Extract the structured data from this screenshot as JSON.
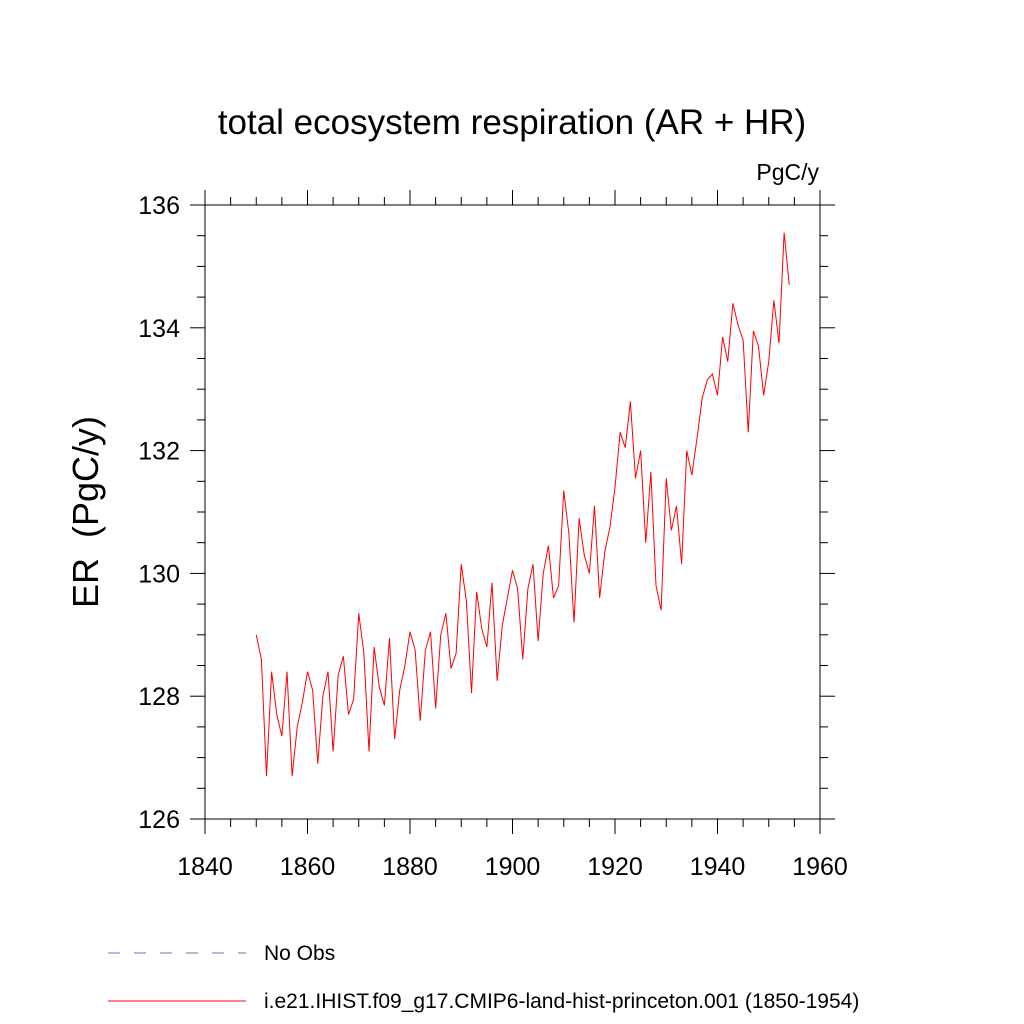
{
  "chart_data": {
    "type": "line",
    "title": "total ecosystem respiration (AR + HR)",
    "units": "PgC/y",
    "ylabel": "ER  (PgC/y)",
    "xlabel": "",
    "xlim": [
      1840,
      1960
    ],
    "ylim": [
      126,
      136
    ],
    "xticks": [
      1840,
      1860,
      1880,
      1900,
      1920,
      1940,
      1960
    ],
    "yticks": [
      126,
      128,
      130,
      132,
      134,
      136
    ],
    "grid": false,
    "legend_position": "bottom-left",
    "series": [
      {
        "name": "i.e21.IHIST.f09_g17.CMIP6-land-hist-princeton.001 (1850-1954)",
        "color": "#ff0000",
        "style": "solid",
        "x": [
          1850,
          1851,
          1852,
          1853,
          1854,
          1855,
          1856,
          1857,
          1858,
          1859,
          1860,
          1861,
          1862,
          1863,
          1864,
          1865,
          1866,
          1867,
          1868,
          1869,
          1870,
          1871,
          1872,
          1873,
          1874,
          1875,
          1876,
          1877,
          1878,
          1879,
          1880,
          1881,
          1882,
          1883,
          1884,
          1885,
          1886,
          1887,
          1888,
          1889,
          1890,
          1891,
          1892,
          1893,
          1894,
          1895,
          1896,
          1897,
          1898,
          1899,
          1900,
          1901,
          1902,
          1903,
          1904,
          1905,
          1906,
          1907,
          1908,
          1909,
          1910,
          1911,
          1912,
          1913,
          1914,
          1915,
          1916,
          1917,
          1918,
          1919,
          1920,
          1921,
          1922,
          1923,
          1924,
          1925,
          1926,
          1927,
          1928,
          1929,
          1930,
          1931,
          1932,
          1933,
          1934,
          1935,
          1936,
          1937,
          1938,
          1939,
          1940,
          1941,
          1942,
          1943,
          1944,
          1945,
          1946,
          1947,
          1948,
          1949,
          1950,
          1951,
          1952,
          1953,
          1954
        ],
        "values": [
          129.0,
          128.6,
          126.7,
          128.4,
          127.7,
          127.35,
          128.4,
          126.7,
          127.5,
          127.9,
          128.4,
          128.1,
          126.9,
          128.0,
          128.4,
          127.1,
          128.35,
          128.65,
          127.7,
          127.95,
          129.35,
          128.7,
          127.1,
          128.8,
          128.15,
          127.85,
          128.95,
          127.3,
          128.1,
          128.5,
          129.05,
          128.75,
          127.6,
          128.75,
          129.05,
          127.8,
          129.0,
          129.35,
          128.45,
          128.7,
          130.15,
          129.55,
          128.05,
          129.7,
          129.1,
          128.8,
          129.85,
          128.25,
          129.15,
          129.6,
          130.05,
          129.75,
          128.6,
          129.75,
          130.15,
          128.9,
          130.0,
          130.45,
          129.6,
          129.8,
          131.35,
          130.65,
          129.2,
          130.9,
          130.3,
          130.0,
          131.1,
          129.6,
          130.35,
          130.75,
          131.4,
          132.3,
          132.05,
          132.8,
          131.55,
          132.0,
          130.5,
          131.65,
          129.8,
          129.4,
          131.55,
          130.7,
          131.1,
          130.15,
          132.0,
          131.6,
          132.2,
          132.85,
          133.15,
          133.25,
          132.9,
          133.85,
          133.45,
          134.4,
          134.05,
          133.8,
          132.3,
          133.95,
          133.7,
          132.9,
          133.45,
          134.45,
          133.75,
          135.55,
          134.7
        ]
      },
      {
        "name": "No Obs",
        "color": "#7b68c9",
        "style": "dashed",
        "x": [],
        "values": []
      }
    ]
  }
}
